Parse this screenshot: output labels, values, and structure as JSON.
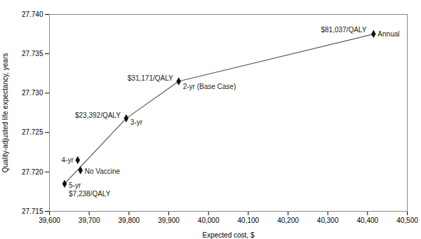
{
  "chart_data": {
    "type": "scatter",
    "x": [
      39638,
      39678,
      39671,
      39793,
      39925,
      40415
    ],
    "values": [
      27.7185,
      27.7202,
      27.7215,
      27.7268,
      27.7315,
      27.7375
    ],
    "color": "#111111",
    "marker": "diamond",
    "frontier": {
      "x": [
        39638,
        39793,
        39925,
        40415
      ],
      "values": [
        27.7185,
        27.7268,
        27.7315,
        27.7375
      ],
      "color": "#555555"
    },
    "annotations": [
      {
        "text": "5-yr",
        "x": 39638,
        "y": 27.7185
      },
      {
        "text": "$7,238/QALY",
        "x": 39638,
        "y": 27.7185
      },
      {
        "text": "No Vaccine",
        "x": 39678,
        "y": 27.7202
      },
      {
        "text": "4-yr",
        "x": 39671,
        "y": 27.7215
      },
      {
        "text": "$23,392/QALY",
        "x": 39793,
        "y": 27.7268
      },
      {
        "text": "3-yr",
        "x": 39793,
        "y": 27.7268
      },
      {
        "text": "$31,171/QALY",
        "x": 39925,
        "y": 27.7315
      },
      {
        "text": "2-yr (Base Case)",
        "x": 39925,
        "y": 27.7315
      },
      {
        "text": "$81,037/QALY",
        "x": 40415,
        "y": 27.7375
      },
      {
        "text": "Annual",
        "x": 40415,
        "y": 27.7375
      }
    ],
    "xlabel": "Expected cost, $",
    "ylabel": "Quality-adjusted life expectancy, years",
    "xlim": [
      39600,
      40500
    ],
    "ylim": [
      27.715,
      27.74
    ],
    "xticks": [
      {
        "value": 39600,
        "label": "39,600"
      },
      {
        "value": 39700,
        "label": "39,700"
      },
      {
        "value": 39800,
        "label": "39,800"
      },
      {
        "value": 39900,
        "label": "39,900"
      },
      {
        "value": 40000,
        "label": "40,000"
      },
      {
        "value": 40100,
        "label": "40,100"
      },
      {
        "value": 40200,
        "label": "40,200"
      },
      {
        "value": 40300,
        "label": "40,300"
      },
      {
        "value": 40400,
        "label": "40,400"
      },
      {
        "value": 40500,
        "label": "40,500"
      }
    ],
    "yticks": [
      27.715,
      {
        "value": 27.72,
        "label": "27.720"
      },
      27.725,
      {
        "value": 27.73,
        "label": "27.730"
      },
      27.735,
      {
        "value": 27.74,
        "label": "27.740"
      }
    ],
    "grid": false
  }
}
